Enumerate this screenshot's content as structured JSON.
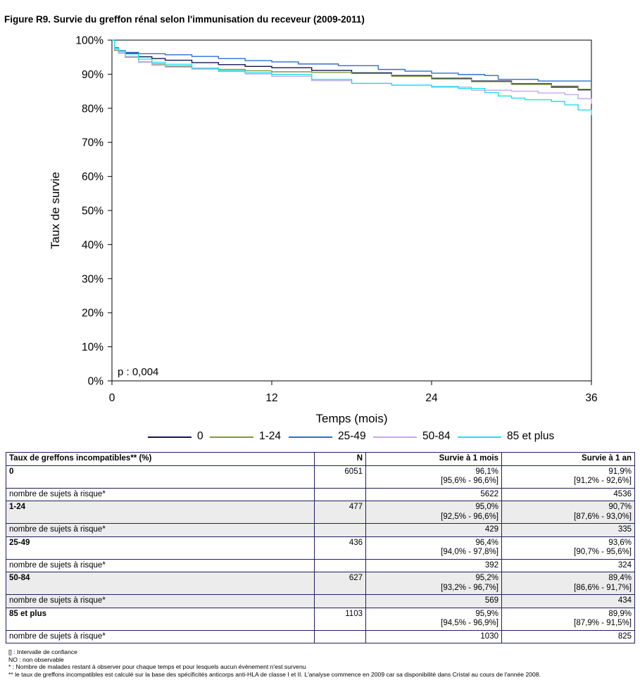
{
  "title": "Figure R9. Survie du greffon rénal selon l'immunisation du receveur (2009-2011)",
  "chart_data": {
    "type": "line",
    "xlabel": "Temps (mois)",
    "ylabel": "Taux de survie",
    "xlim": [
      0,
      36
    ],
    "ylim": [
      0,
      100
    ],
    "xticks": [
      "0",
      "12",
      "24",
      "36"
    ],
    "yticks": [
      "0%",
      "10%",
      "20%",
      "30%",
      "40%",
      "50%",
      "60%",
      "70%",
      "80%",
      "90%",
      "100%"
    ],
    "annotation": "p : 0,004",
    "legend_position": "bottom",
    "series": [
      {
        "name": "0",
        "color": "#141450",
        "x": [
          0,
          0.2,
          0.5,
          1,
          2,
          3,
          4,
          6,
          8,
          10,
          12,
          15,
          18,
          21,
          24,
          27,
          30,
          33,
          35,
          36
        ],
        "y": [
          100,
          97.5,
          96.8,
          96.1,
          95.1,
          94.6,
          94.1,
          93.4,
          92.8,
          92.3,
          91.9,
          91.1,
          90.4,
          89.6,
          88.8,
          88.0,
          87.2,
          86.2,
          85.4,
          85.0
        ]
      },
      {
        "name": "1-24",
        "color": "#7f9a3a",
        "x": [
          0,
          0.2,
          0.5,
          1,
          2,
          3,
          4,
          6,
          8,
          10,
          12,
          15,
          18,
          21,
          24,
          27,
          30,
          33,
          35,
          36
        ],
        "y": [
          100,
          97.0,
          96.2,
          95.0,
          93.6,
          93.0,
          92.4,
          91.8,
          91.4,
          91.0,
          90.7,
          90.5,
          90.2,
          89.4,
          88.6,
          87.8,
          87.0,
          86.5,
          85.6,
          85.0
        ]
      },
      {
        "name": "25-49",
        "color": "#2f6fd0",
        "x": [
          0,
          0.2,
          0.5,
          1,
          2,
          4,
          6,
          8,
          10,
          12,
          14,
          17,
          20,
          22,
          24,
          26,
          28,
          29,
          32,
          36
        ],
        "y": [
          100,
          97.8,
          96.9,
          96.4,
          96.0,
          95.7,
          95.2,
          94.6,
          94.0,
          93.6,
          93.0,
          92.5,
          91.4,
          90.9,
          90.3,
          89.9,
          89.6,
          88.5,
          88.0,
          88.0
        ]
      },
      {
        "name": "50-84",
        "color": "#c3a8ea",
        "x": [
          0,
          0.2,
          0.5,
          1,
          2,
          3,
          4,
          6,
          8,
          10,
          12,
          15,
          18,
          21,
          24,
          27,
          30,
          32,
          34,
          35,
          36
        ],
        "y": [
          100,
          97.4,
          96.3,
          95.2,
          93.5,
          92.6,
          92.1,
          91.5,
          90.8,
          90.1,
          89.4,
          88.1,
          87.3,
          86.8,
          86.2,
          85.3,
          85.0,
          84.5,
          84.0,
          82.8,
          81.3
        ]
      },
      {
        "name": "85 et plus",
        "color": "#22e0ee",
        "x": [
          0,
          0.2,
          0.5,
          1,
          2,
          3,
          4,
          6,
          8,
          10,
          12,
          15,
          18,
          21,
          24,
          26,
          28,
          29,
          30,
          31,
          33,
          34,
          35,
          36
        ],
        "y": [
          100,
          97.6,
          96.7,
          95.9,
          94.4,
          93.5,
          92.9,
          91.8,
          91.0,
          90.4,
          89.9,
          88.5,
          87.3,
          86.8,
          86.4,
          85.8,
          84.6,
          83.6,
          83.0,
          82.5,
          82.0,
          81.0,
          79.5,
          78.0
        ]
      }
    ]
  },
  "table": {
    "headers": [
      "Taux de greffons incompatibles** (%)",
      "N",
      "Survie à 1 mois",
      "Survie à 1 an"
    ],
    "groups": [
      {
        "label": "0",
        "n": "6051",
        "m1": "96,1%",
        "m1_ci": "[95,6% - 96,6%]",
        "y1": "91,9%",
        "y1_ci": "[91,2% - 92,6%]",
        "risk_label": "nombre de sujets à risque*",
        "risk_m1": "5622",
        "risk_y1": "4536"
      },
      {
        "label": "1-24",
        "n": "477",
        "m1": "95,0%",
        "m1_ci": "[92,5% - 96,6%]",
        "y1": "90,7%",
        "y1_ci": "[87,6% - 93,0%]",
        "risk_label": "nombre de sujets à risque*",
        "risk_m1": "429",
        "risk_y1": "335"
      },
      {
        "label": "25-49",
        "n": "436",
        "m1": "96,4%",
        "m1_ci": "[94,0% - 97,8%]",
        "y1": "93,6%",
        "y1_ci": "[90,7% - 95,6%]",
        "risk_label": "nombre de sujets à risque*",
        "risk_m1": "392",
        "risk_y1": "324"
      },
      {
        "label": "50-84",
        "n": "627",
        "m1": "95,2%",
        "m1_ci": "[93,2% - 96,7%]",
        "y1": "89,4%",
        "y1_ci": "[86,6% - 91,7%]",
        "risk_label": "nombre de sujets à risque*",
        "risk_m1": "569",
        "risk_y1": "434"
      },
      {
        "label": "85 et plus",
        "n": "1103",
        "m1": "95,9%",
        "m1_ci": "[94,5% - 96,9%]",
        "y1": "89,9%",
        "y1_ci": "[87,9% - 91,5%]",
        "risk_label": "nombre de sujets à risque*",
        "risk_m1": "1030",
        "risk_y1": "825"
      }
    ]
  },
  "notes": [
    "[] : Intervalle de confiance",
    "NO : non observable",
    "* : Nombre de malades restant à observer pour chaque temps et pour lesquels aucun évènement n'est survenu",
    "** le taux de greffons incompatibles est calculé sur la base des spécificités anticorps anti-HLA de classe I et II. L'analyse commence en 2009 car sa disponibilité dans Cristal au cours de l'année 2008."
  ]
}
